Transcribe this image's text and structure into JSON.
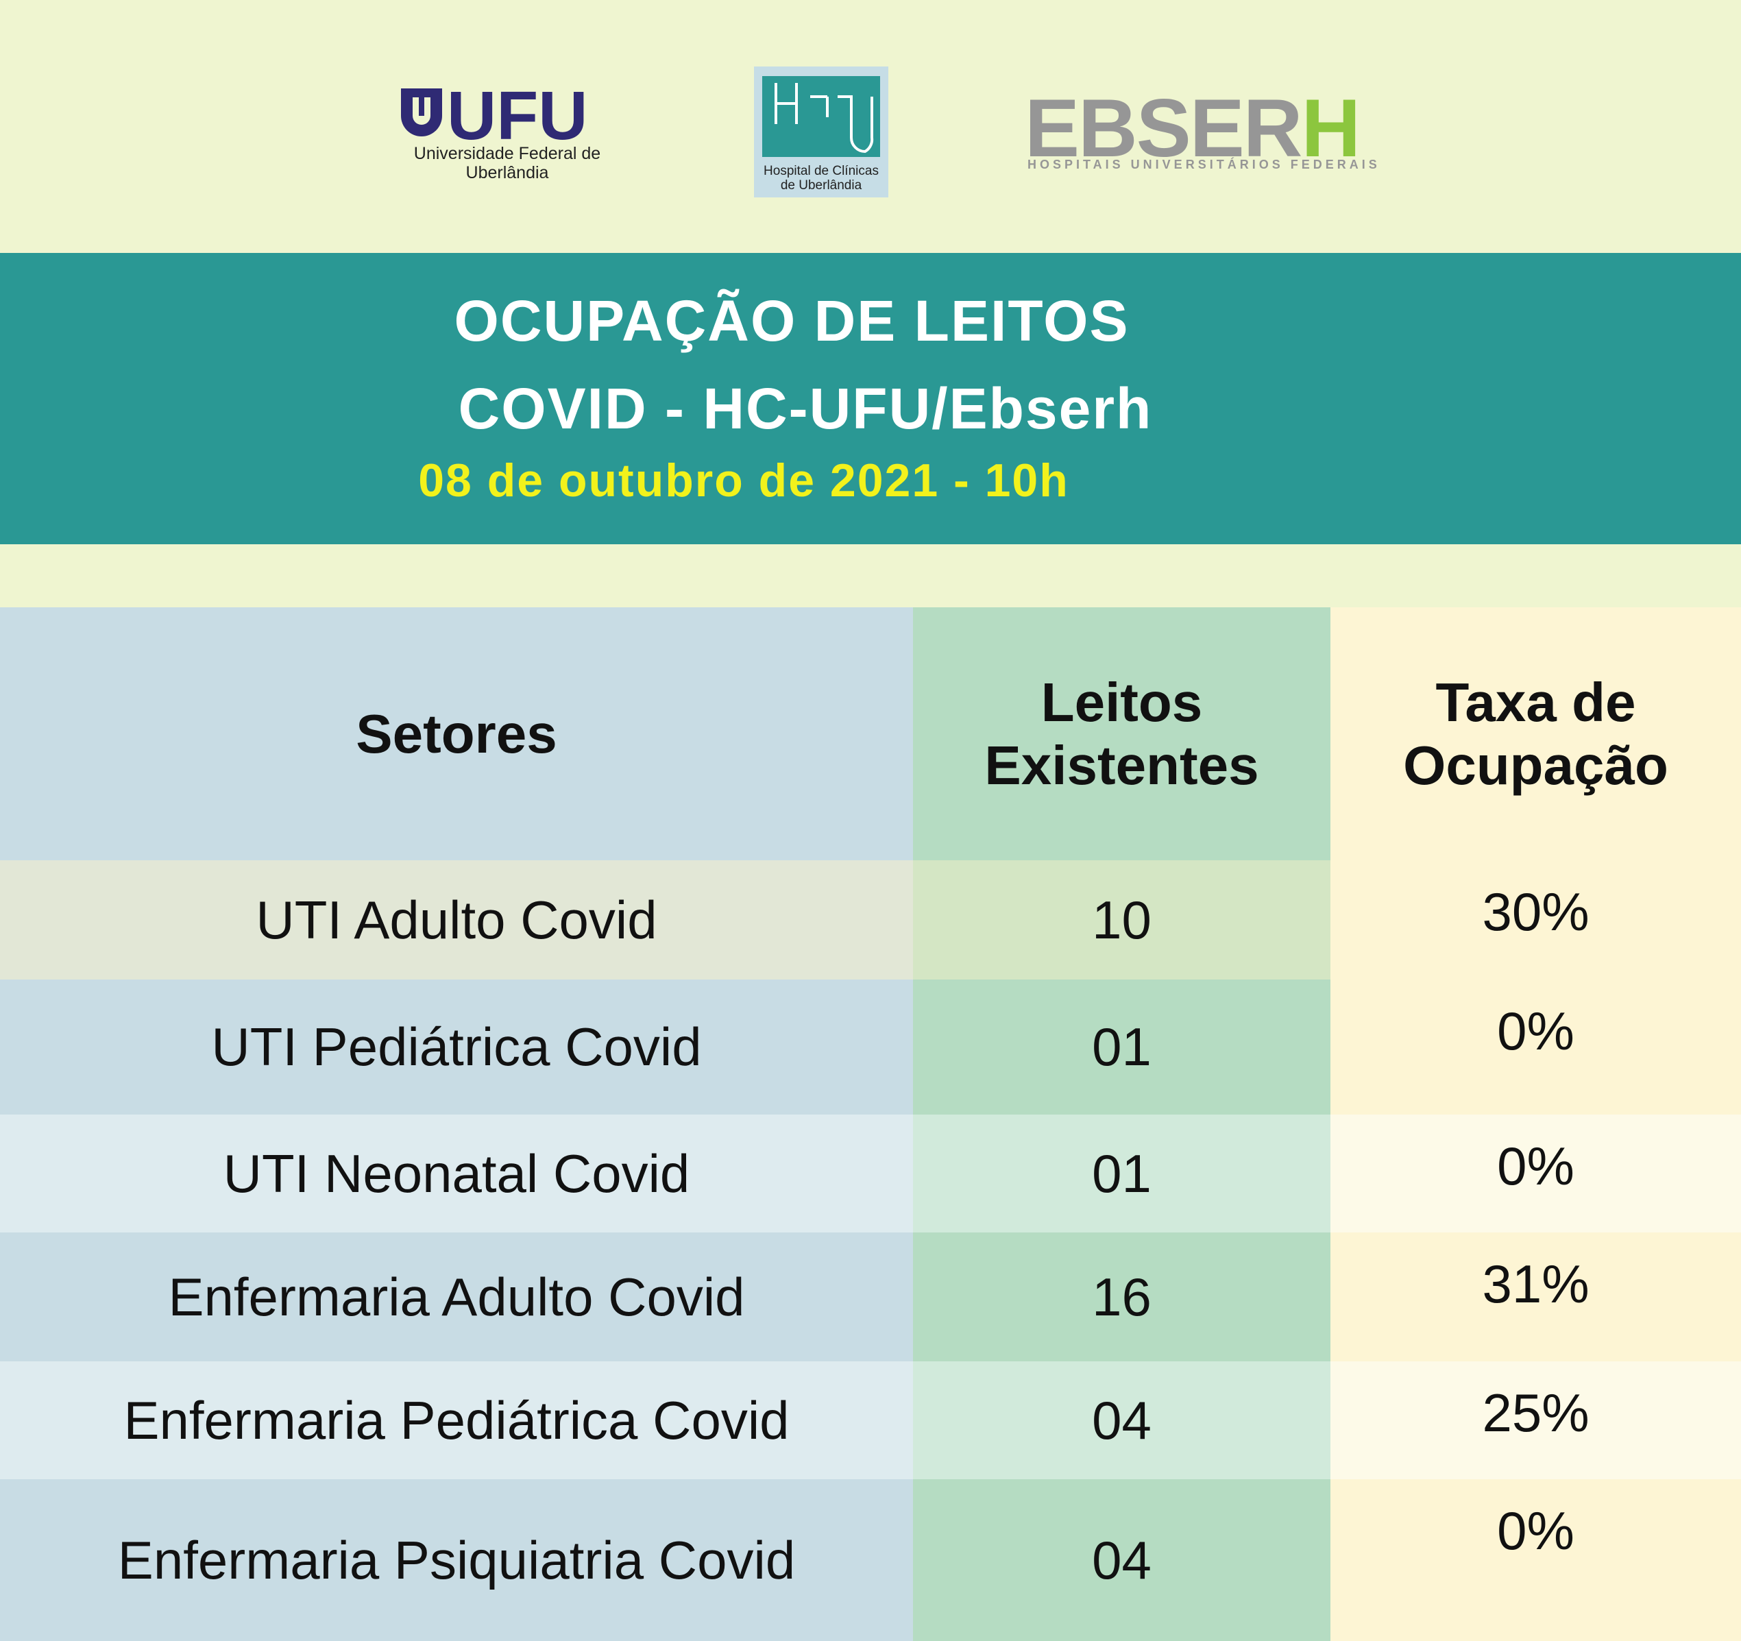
{
  "logos": {
    "ufu": {
      "name": "UFU",
      "line1": "Universidade Federal de",
      "line2": "Uberlândia"
    },
    "hc": {
      "line1": "Hospital de Clínicas",
      "line2": "de Uberlândia"
    },
    "ebserh": {
      "name_parts": [
        "EBSER",
        "H"
      ],
      "subtitle": "HOSPITAIS UNIVERSITÁRIOS FEDERAIS"
    }
  },
  "header": {
    "title_line1": "OCUPAÇÃO DE LEITOS",
    "title_line2": "COVID - HC-UFU/Ebserh",
    "date": "08 de outubro de 2021 - 10h"
  },
  "table": {
    "columns": [
      "Setores",
      "Leitos Existentes",
      "Taxa de Ocupação"
    ],
    "rows": [
      [
        "UTI Adulto Covid",
        "10",
        "30%"
      ],
      [
        "UTI Pediátrica Covid",
        "01",
        "0%"
      ],
      [
        "UTI Neonatal Covid",
        "01",
        "0%"
      ],
      [
        "Enfermaria Adulto Covid",
        "16",
        "31%"
      ],
      [
        "Enfermaria Pediátrica Covid",
        "04",
        "25%"
      ],
      [
        "Enfermaria Psiquiatria Covid",
        "04",
        "0%"
      ]
    ]
  }
}
